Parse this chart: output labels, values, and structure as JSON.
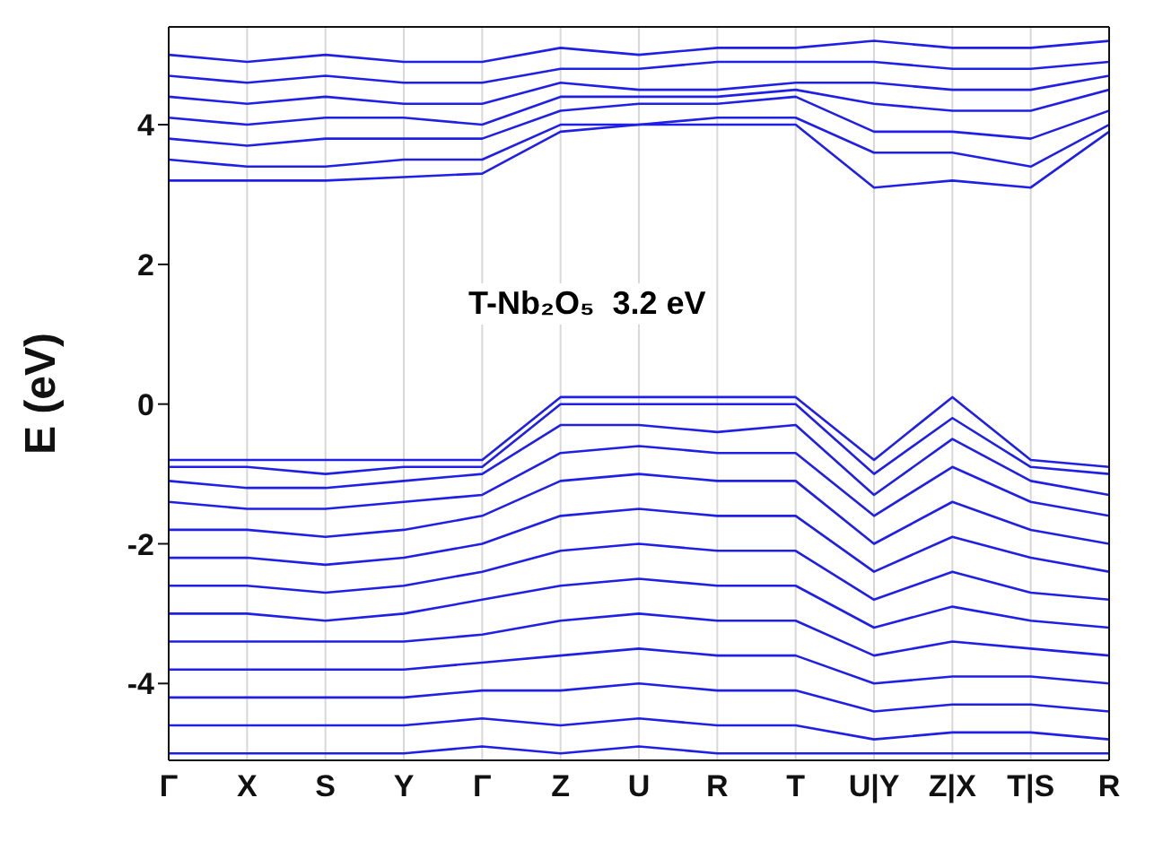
{
  "chart_data": {
    "type": "line",
    "ylabel": "E (eV)",
    "annotations": [
      "T-Nb₂O₅  3.2 eV"
    ],
    "categories": [
      "Γ",
      "X",
      "S",
      "Y",
      "Γ",
      "Z",
      "U",
      "R",
      "T",
      "U|Y",
      "Z|X",
      "T|S",
      "R"
    ],
    "ylim": [
      -5.1,
      5.4
    ],
    "yticks": [
      -4,
      -2,
      0,
      2,
      4
    ],
    "grid": "x",
    "marker": "none",
    "line_style": "solid",
    "series": [
      {
        "color": "#1f1fe6",
        "values": [
          3.2,
          3.2,
          3.2,
          3.25,
          3.3,
          3.9,
          4.0,
          4.0,
          4.0,
          3.1,
          3.2,
          3.1,
          3.9
        ]
      },
      {
        "color": "#1f1fe6",
        "values": [
          3.5,
          3.4,
          3.4,
          3.5,
          3.5,
          4.0,
          4.0,
          4.1,
          4.1,
          3.6,
          3.6,
          3.4,
          4.0
        ]
      },
      {
        "color": "#1f1fe6",
        "values": [
          3.8,
          3.7,
          3.8,
          3.8,
          3.8,
          4.2,
          4.3,
          4.3,
          4.4,
          3.9,
          3.9,
          3.8,
          4.2
        ]
      },
      {
        "color": "#1f1fe6",
        "values": [
          4.1,
          4.0,
          4.1,
          4.1,
          4.0,
          4.4,
          4.4,
          4.4,
          4.5,
          4.3,
          4.2,
          4.2,
          4.5
        ]
      },
      {
        "color": "#1f1fe6",
        "values": [
          4.4,
          4.3,
          4.4,
          4.3,
          4.3,
          4.6,
          4.5,
          4.5,
          4.6,
          4.6,
          4.5,
          4.5,
          4.7
        ]
      },
      {
        "color": "#1f1fe6",
        "values": [
          4.7,
          4.6,
          4.7,
          4.6,
          4.6,
          4.8,
          4.8,
          4.9,
          4.9,
          4.9,
          4.8,
          4.8,
          4.9
        ]
      },
      {
        "color": "#1f1fe6",
        "values": [
          5.0,
          4.9,
          5.0,
          4.9,
          4.9,
          5.1,
          5.0,
          5.1,
          5.1,
          5.2,
          5.1,
          5.1,
          5.2
        ]
      },
      {
        "color": "#1f1fe6",
        "values": [
          -0.8,
          -0.8,
          -0.8,
          -0.8,
          -0.8,
          0.1,
          0.1,
          0.1,
          0.1,
          -0.8,
          0.1,
          -0.8,
          -0.9
        ]
      },
      {
        "color": "#1f1fe6",
        "values": [
          -0.9,
          -0.9,
          -1.0,
          -0.9,
          -0.9,
          0.0,
          0.0,
          0.0,
          0.0,
          -1.0,
          -0.2,
          -0.9,
          -1.0
        ]
      },
      {
        "color": "#1f1fe6",
        "values": [
          -1.1,
          -1.2,
          -1.2,
          -1.1,
          -1.0,
          -0.3,
          -0.3,
          -0.4,
          -0.3,
          -1.3,
          -0.5,
          -1.1,
          -1.3
        ]
      },
      {
        "color": "#1f1fe6",
        "values": [
          -1.4,
          -1.5,
          -1.5,
          -1.4,
          -1.3,
          -0.7,
          -0.6,
          -0.7,
          -0.7,
          -1.6,
          -0.9,
          -1.4,
          -1.6
        ]
      },
      {
        "color": "#1f1fe6",
        "values": [
          -1.8,
          -1.8,
          -1.9,
          -1.8,
          -1.6,
          -1.1,
          -1.0,
          -1.1,
          -1.1,
          -2.0,
          -1.4,
          -1.8,
          -2.0
        ]
      },
      {
        "color": "#1f1fe6",
        "values": [
          -2.2,
          -2.2,
          -2.3,
          -2.2,
          -2.0,
          -1.6,
          -1.5,
          -1.6,
          -1.6,
          -2.4,
          -1.9,
          -2.2,
          -2.4
        ]
      },
      {
        "color": "#1f1fe6",
        "values": [
          -2.6,
          -2.6,
          -2.7,
          -2.6,
          -2.4,
          -2.1,
          -2.0,
          -2.1,
          -2.1,
          -2.8,
          -2.4,
          -2.7,
          -2.8
        ]
      },
      {
        "color": "#1f1fe6",
        "values": [
          -3.0,
          -3.0,
          -3.1,
          -3.0,
          -2.8,
          -2.6,
          -2.5,
          -2.6,
          -2.6,
          -3.2,
          -2.9,
          -3.1,
          -3.2
        ]
      },
      {
        "color": "#1f1fe6",
        "values": [
          -3.4,
          -3.4,
          -3.4,
          -3.4,
          -3.3,
          -3.1,
          -3.0,
          -3.1,
          -3.1,
          -3.6,
          -3.4,
          -3.5,
          -3.6
        ]
      },
      {
        "color": "#1f1fe6",
        "values": [
          -3.8,
          -3.8,
          -3.8,
          -3.8,
          -3.7,
          -3.6,
          -3.5,
          -3.6,
          -3.6,
          -4.0,
          -3.9,
          -3.9,
          -4.0
        ]
      },
      {
        "color": "#1f1fe6",
        "values": [
          -4.2,
          -4.2,
          -4.2,
          -4.2,
          -4.1,
          -4.1,
          -4.0,
          -4.1,
          -4.1,
          -4.4,
          -4.3,
          -4.3,
          -4.4
        ]
      },
      {
        "color": "#1f1fe6",
        "values": [
          -4.6,
          -4.6,
          -4.6,
          -4.6,
          -4.5,
          -4.6,
          -4.5,
          -4.6,
          -4.6,
          -4.8,
          -4.7,
          -4.7,
          -4.8
        ]
      },
      {
        "color": "#1f1fe6",
        "values": [
          -5.0,
          -5.0,
          -5.0,
          -5.0,
          -4.9,
          -5.0,
          -4.9,
          -5.0,
          -5.0,
          -5.0,
          -5.0,
          -5.0,
          -5.0
        ]
      }
    ]
  }
}
